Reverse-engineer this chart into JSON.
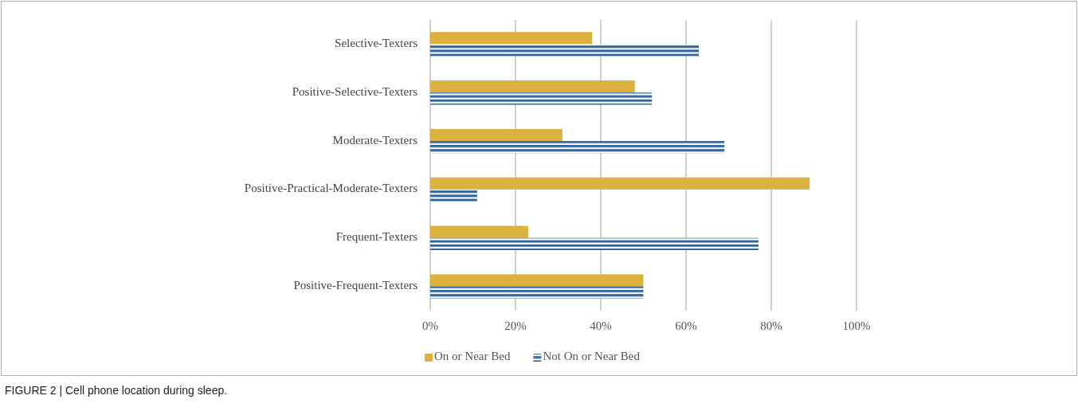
{
  "chart_data": {
    "type": "bar",
    "orientation": "horizontal",
    "title": "FIGURE 2 | Cell phone location during sleep.",
    "categories": [
      "Selective-Texters",
      "Positive-Selective-Texters",
      "Moderate-Texters",
      "Positive-Practical-Moderate-Texters",
      "Frequent-Texters",
      "Positive-Frequent-Texters"
    ],
    "series": [
      {
        "name": "On or Near Bed",
        "color": "#ddb13f",
        "values": [
          38,
          48,
          31,
          89,
          23,
          50
        ]
      },
      {
        "name": "Not On or Near Bed",
        "color": "#2e64a0",
        "values": [
          63,
          52,
          69,
          11,
          77,
          50
        ]
      }
    ],
    "xlim": [
      0,
      100
    ],
    "xticks": [
      {
        "value": 0,
        "label": "0%"
      },
      {
        "value": 20,
        "label": "20%"
      },
      {
        "value": 40,
        "label": "40%"
      },
      {
        "value": 60,
        "label": "60%"
      },
      {
        "value": 80,
        "label": "80%"
      },
      {
        "value": 100,
        "label": "100%"
      }
    ],
    "grid": "x",
    "legend": "bottom"
  }
}
